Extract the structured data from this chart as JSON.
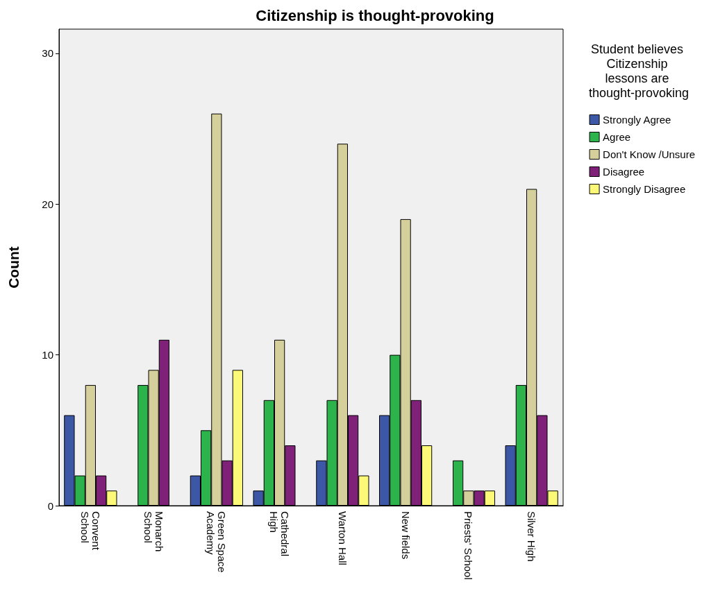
{
  "chart_data": {
    "type": "bar",
    "title": "Citizenship is thought-provoking",
    "ylabel": "Count",
    "legend_title": "Student believes Citizenship lessons are thought-provoking",
    "categories": [
      "Convent School",
      "Monarch School",
      "Green Space Academy",
      "Cathedral High",
      "Warton Hall",
      "New fields",
      "Priests' School",
      "Silver High"
    ],
    "series": [
      {
        "name": "Strongly Agree",
        "color": "#3d57a7",
        "values": [
          6,
          null,
          2,
          1,
          3,
          6,
          null,
          4
        ]
      },
      {
        "name": "Agree",
        "color": "#2db34b",
        "values": [
          2,
          8,
          5,
          7,
          7,
          10,
          3,
          8
        ]
      },
      {
        "name": "Don't Know /Unsure",
        "color": "#d5cf9b",
        "values": [
          8,
          9,
          26,
          11,
          24,
          19,
          1,
          21
        ]
      },
      {
        "name": "Disagree",
        "color": "#7f2079",
        "values": [
          2,
          11,
          3,
          4,
          6,
          7,
          1,
          6
        ]
      },
      {
        "name": "Strongly Disagree",
        "color": "#fbf977",
        "values": [
          1,
          null,
          9,
          null,
          2,
          4,
          1,
          1
        ]
      }
    ],
    "ylim": [
      0,
      31.6
    ],
    "yticks": [
      0,
      10,
      20,
      30
    ],
    "grid": false,
    "legend": "right"
  }
}
